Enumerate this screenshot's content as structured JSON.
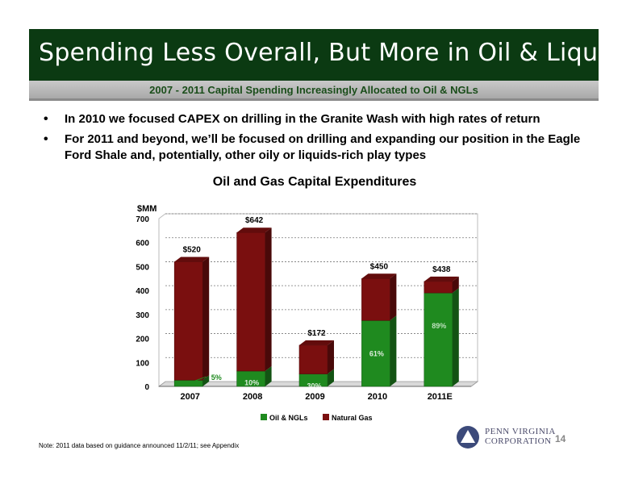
{
  "header": {
    "title": "Spending Less Overall, But More in Oil & Liquids",
    "subtitle": "2007 - 2011 Capital Spending Increasingly Allocated to Oil & NGLs"
  },
  "bullets": [
    "In 2010 we focused CAPEX on drilling in the Granite Wash with high rates of return",
    "For 2011 and beyond, we’ll be focused on drilling and expanding our position in the Eagle Ford Shale and, potentially, other oily or liquids-rich play types"
  ],
  "chart_data": {
    "type": "bar",
    "stacked": true,
    "title": "Oil and Gas Capital Expenditures",
    "ylabel": "$MM",
    "ylim": [
      0,
      700
    ],
    "yticks": [
      0,
      100,
      200,
      300,
      400,
      500,
      600,
      700
    ],
    "grid": true,
    "legend_position": "bottom",
    "categories": [
      "2007",
      "2008",
      "2009",
      "2010",
      "2011E"
    ],
    "totals": [
      520,
      642,
      172,
      450,
      438
    ],
    "total_labels": [
      "$520",
      "$642",
      "$172",
      "$450",
      "$438"
    ],
    "oil_pct_labels": [
      "5%",
      "10%",
      "30%",
      "61%",
      "89%"
    ],
    "series": [
      {
        "name": "Oil & NGLs",
        "color": "#1f8a1f",
        "values": [
          26,
          64,
          52,
          275,
          390
        ]
      },
      {
        "name": "Natural Gas",
        "color": "#7a0f0f",
        "values": [
          494,
          578,
          120,
          175,
          48
        ]
      }
    ]
  },
  "footer": {
    "note": "Note: 2011 data based on guidance announced 11/2/11; see Appendix",
    "page_number": "14",
    "logo_line1": "PENN VIRGINIA",
    "logo_line2": "CORPORATION"
  }
}
